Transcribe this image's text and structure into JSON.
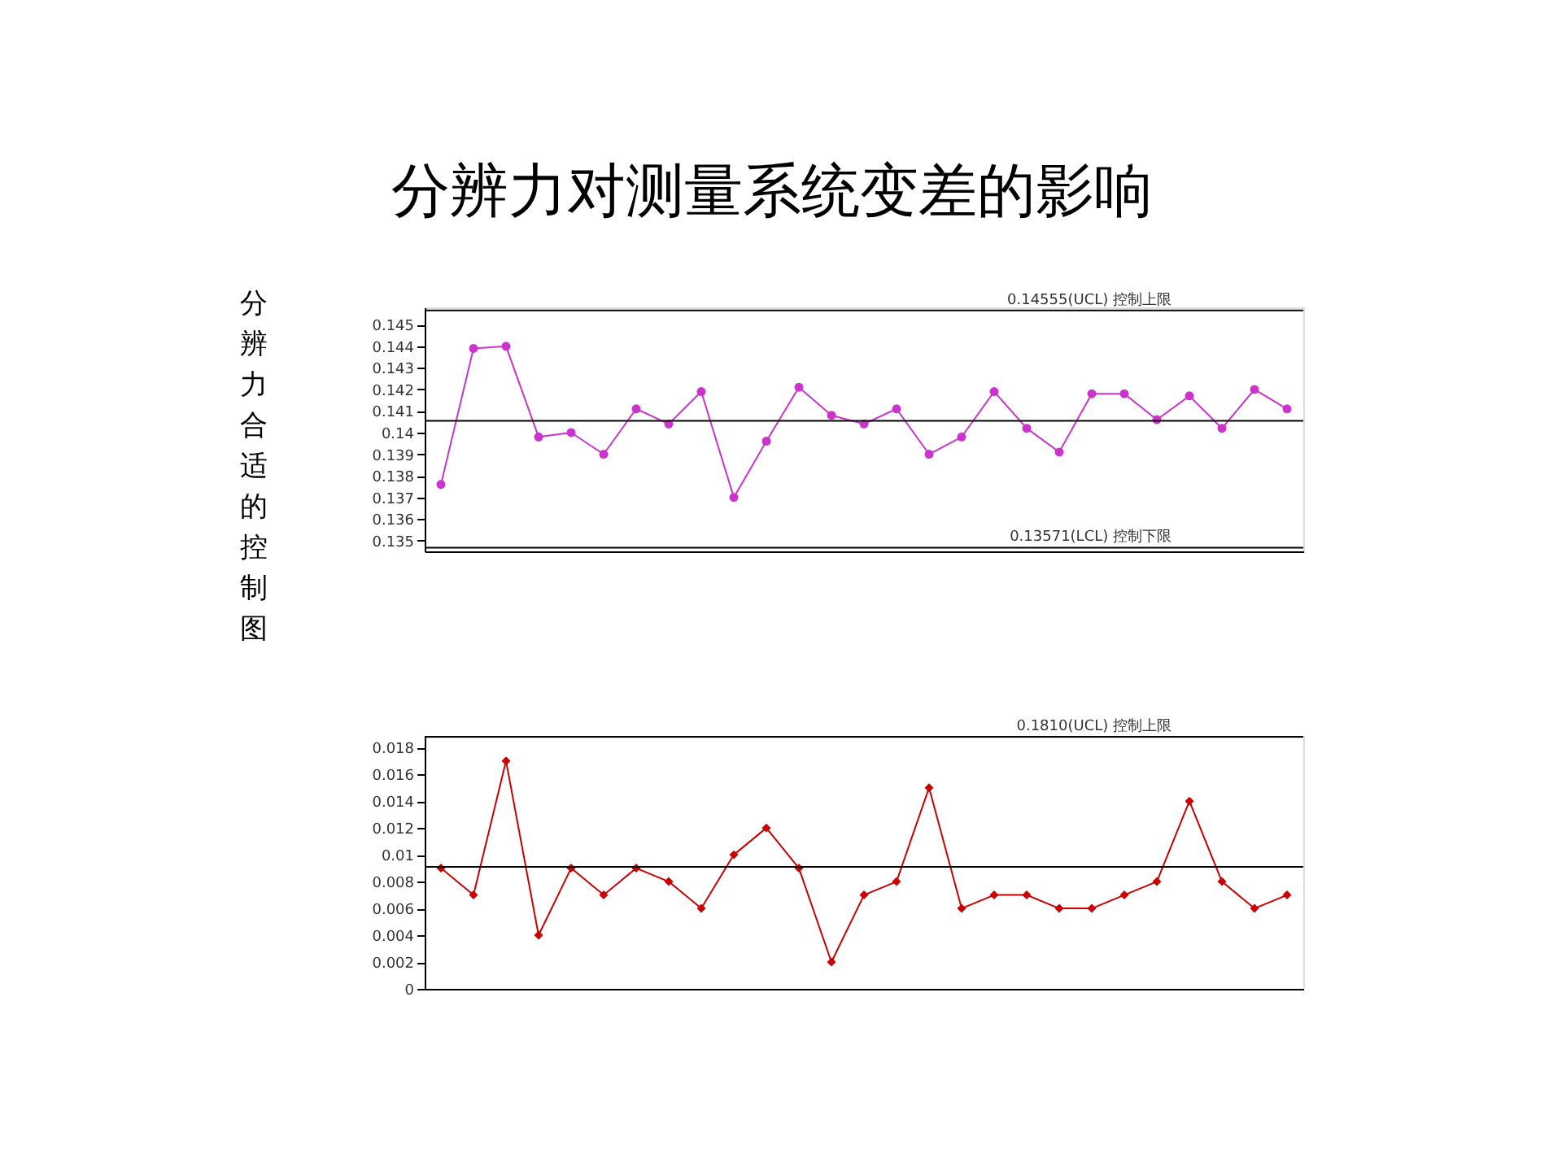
{
  "chart_data": [
    {
      "type": "line",
      "title": "分辨力对测量系统变差的影响",
      "annotations": [
        "分辨力合适的控制图"
      ],
      "categories": [
        null,
        null,
        null,
        null,
        null,
        null,
        null,
        null,
        null,
        null,
        null,
        null,
        null,
        null,
        null,
        null,
        null,
        null,
        null,
        null,
        null,
        null,
        null,
        null,
        null,
        null,
        null
      ],
      "series": [
        {
          "color": "#cc33cc",
          "values": [
            0.1376,
            0.1439,
            0.144,
            0.1398,
            0.14,
            0.139,
            0.1411,
            0.1404,
            0.1419,
            0.137,
            0.1396,
            0.1421,
            0.1408,
            0.1404,
            0.1411,
            0.139,
            0.1398,
            0.1419,
            0.1402,
            0.1391,
            0.1418,
            0.1418,
            0.1406,
            0.1417,
            0.1402,
            0.142,
            0.1411
          ]
        }
      ],
      "marker": "circle",
      "ylim": [
        0.1345,
        0.1458
      ],
      "yticks": [
        0.135,
        0.136,
        0.137,
        0.138,
        0.139,
        0.14,
        0.141,
        0.142,
        0.143,
        0.144,
        0.145
      ],
      "tick_labels": "y",
      "grid": false,
      "ref_lines": [
        {
          "axis": "y",
          "value": 0.14566,
          "label": "0.14555(UCL) 控制上限",
          "color": "#000000"
        },
        {
          "axis": "y",
          "value": 0.14055,
          "label": null,
          "color": "#000000"
        },
        {
          "axis": "y",
          "value": 0.13467,
          "label": "0.13571(LCL) 控制下限",
          "color": "#000000"
        }
      ]
    },
    {
      "type": "line",
      "categories": [
        null,
        null,
        null,
        null,
        null,
        null,
        null,
        null,
        null,
        null,
        null,
        null,
        null,
        null,
        null,
        null,
        null,
        null,
        null,
        null,
        null,
        null,
        null,
        null,
        null,
        null,
        null
      ],
      "series": [
        {
          "color": "#cc0000",
          "values": [
            0.009,
            0.007,
            0.017,
            0.004,
            0.009,
            0.007,
            0.009,
            0.008,
            0.006,
            0.01,
            0.012,
            0.009,
            0.002,
            0.007,
            0.008,
            0.015,
            0.006,
            0.007,
            0.007,
            0.006,
            0.006,
            0.007,
            0.008,
            0.014,
            0.008,
            0.006,
            0.007
          ]
        }
      ],
      "marker": "diamond",
      "ylim": [
        0,
        0.0188
      ],
      "yticks": [
        0,
        0.002,
        0.004,
        0.006,
        0.008,
        0.01,
        0.012,
        0.014,
        0.016,
        0.018
      ],
      "tick_labels": "y",
      "grid": false,
      "ref_lines": [
        {
          "axis": "y",
          "value": 0.0188,
          "label": "0.1810(UCL) 控制上限",
          "color": "#000000"
        },
        {
          "axis": "y",
          "value": 0.0091,
          "label": null,
          "color": "#000000"
        }
      ]
    }
  ]
}
